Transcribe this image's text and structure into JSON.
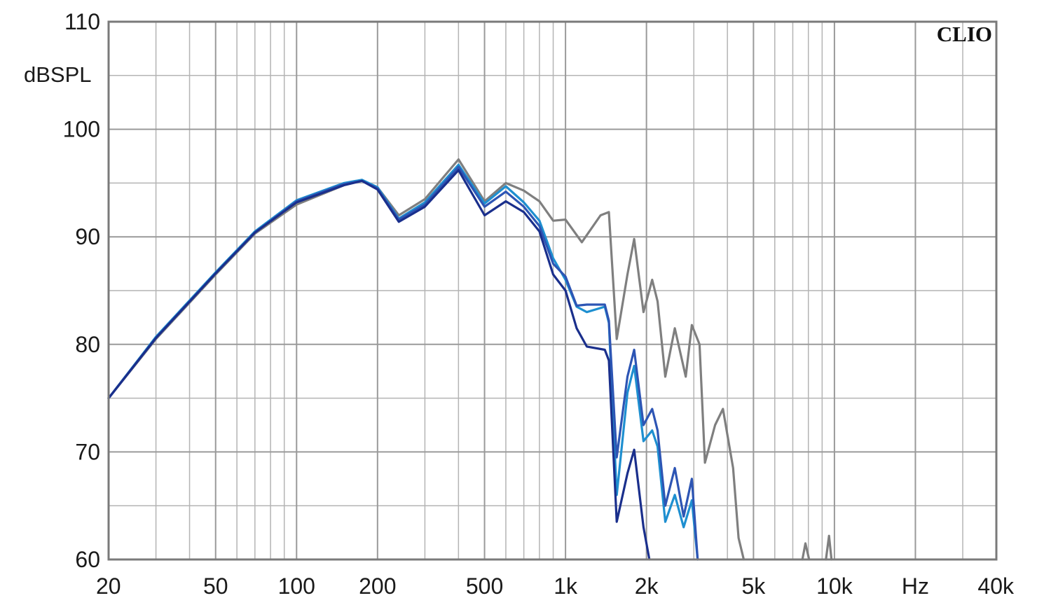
{
  "chart_data": {
    "type": "line",
    "brand": "CLIO",
    "ylabel": "dBSPL",
    "xunit_label": "Hz",
    "xscale": "log",
    "xlim": [
      20,
      40000
    ],
    "ylim": [
      60,
      110
    ],
    "grid": true,
    "x_ticks": [
      {
        "value": 20,
        "label": "20"
      },
      {
        "value": 50,
        "label": "50"
      },
      {
        "value": 100,
        "label": "100"
      },
      {
        "value": 200,
        "label": "200"
      },
      {
        "value": 500,
        "label": "500"
      },
      {
        "value": 1000,
        "label": "1k"
      },
      {
        "value": 2000,
        "label": "2k"
      },
      {
        "value": 5000,
        "label": "5k"
      },
      {
        "value": 10000,
        "label": "10k"
      },
      {
        "value": 20000,
        "label": "Hz"
      },
      {
        "value": 40000,
        "label": "40k"
      }
    ],
    "y_ticks": [
      {
        "value": 60,
        "label": "60"
      },
      {
        "value": 70,
        "label": "70"
      },
      {
        "value": 80,
        "label": "80"
      },
      {
        "value": 90,
        "label": "90"
      },
      {
        "value": 100,
        "label": "100"
      },
      {
        "value": 110,
        "label": "110"
      }
    ],
    "series": [
      {
        "color": "#7f7f7f",
        "points": [
          [
            20,
            75
          ],
          [
            30,
            80.5
          ],
          [
            50,
            86.5
          ],
          [
            70,
            90.3
          ],
          [
            100,
            93
          ],
          [
            150,
            94.8
          ],
          [
            175,
            95.2
          ],
          [
            200,
            94.6
          ],
          [
            240,
            92
          ],
          [
            300,
            93.5
          ],
          [
            400,
            97.2
          ],
          [
            500,
            93.3
          ],
          [
            600,
            95
          ],
          [
            700,
            94.3
          ],
          [
            800,
            93.3
          ],
          [
            900,
            91.5
          ],
          [
            1000,
            91.6
          ],
          [
            1150,
            89.5
          ],
          [
            1350,
            92
          ],
          [
            1450,
            92.3
          ],
          [
            1550,
            80.5
          ],
          [
            1700,
            86.5
          ],
          [
            1800,
            89.8
          ],
          [
            1950,
            83
          ],
          [
            2100,
            86
          ],
          [
            2200,
            84
          ],
          [
            2350,
            77
          ],
          [
            2550,
            81.5
          ],
          [
            2800,
            77
          ],
          [
            2950,
            81.8
          ],
          [
            3150,
            80
          ],
          [
            3300,
            69
          ],
          [
            3600,
            72.5
          ],
          [
            3850,
            74
          ],
          [
            4200,
            68.5
          ],
          [
            4400,
            62
          ],
          [
            4600,
            60
          ]
        ],
        "segments": [
          [
            [
              7600,
              60
            ],
            [
              7800,
              61.5
            ],
            [
              8050,
              60
            ]
          ],
          [
            [
              9300,
              60
            ],
            [
              9550,
              62.2
            ],
            [
              9750,
              60
            ]
          ]
        ]
      },
      {
        "color": "#1e8fd0",
        "points": [
          [
            20,
            75
          ],
          [
            30,
            80.7
          ],
          [
            50,
            86.7
          ],
          [
            70,
            90.5
          ],
          [
            100,
            93.4
          ],
          [
            150,
            95
          ],
          [
            175,
            95.3
          ],
          [
            200,
            94.6
          ],
          [
            240,
            91.7
          ],
          [
            300,
            93.2
          ],
          [
            400,
            96.7
          ],
          [
            500,
            93.1
          ],
          [
            600,
            94.7
          ],
          [
            700,
            93.2
          ],
          [
            800,
            91.5
          ],
          [
            900,
            88
          ],
          [
            1000,
            86
          ],
          [
            1100,
            83.5
          ],
          [
            1200,
            83
          ],
          [
            1400,
            83.5
          ],
          [
            1450,
            82
          ],
          [
            1550,
            66
          ],
          [
            1700,
            75.5
          ],
          [
            1800,
            78
          ],
          [
            1950,
            71
          ],
          [
            2100,
            72
          ],
          [
            2200,
            70.5
          ],
          [
            2350,
            63.5
          ],
          [
            2550,
            66
          ],
          [
            2750,
            63
          ],
          [
            2950,
            65.5
          ],
          [
            3100,
            60
          ]
        ],
        "segments": []
      },
      {
        "color": "#2d55b4",
        "points": [
          [
            20,
            75
          ],
          [
            30,
            80.6
          ],
          [
            50,
            86.6
          ],
          [
            70,
            90.4
          ],
          [
            100,
            93.3
          ],
          [
            150,
            94.9
          ],
          [
            175,
            95.2
          ],
          [
            200,
            94.5
          ],
          [
            240,
            91.6
          ],
          [
            300,
            93
          ],
          [
            400,
            96.5
          ],
          [
            500,
            92.8
          ],
          [
            600,
            94.2
          ],
          [
            700,
            92.8
          ],
          [
            800,
            91
          ],
          [
            900,
            87.5
          ],
          [
            1000,
            86.3
          ],
          [
            1100,
            83.6
          ],
          [
            1200,
            83.7
          ],
          [
            1400,
            83.7
          ],
          [
            1450,
            82.2
          ],
          [
            1550,
            69.5
          ],
          [
            1700,
            77
          ],
          [
            1800,
            79.5
          ],
          [
            1950,
            72.5
          ],
          [
            2100,
            74
          ],
          [
            2200,
            72
          ],
          [
            2350,
            65
          ],
          [
            2550,
            68.5
          ],
          [
            2750,
            64
          ],
          [
            2950,
            67.5
          ],
          [
            3100,
            60
          ]
        ],
        "segments": []
      },
      {
        "color": "#1a2f8c",
        "points": [
          [
            20,
            75
          ],
          [
            30,
            80.6
          ],
          [
            50,
            86.6
          ],
          [
            70,
            90.4
          ],
          [
            100,
            93.2
          ],
          [
            150,
            94.8
          ],
          [
            175,
            95.2
          ],
          [
            200,
            94.4
          ],
          [
            240,
            91.4
          ],
          [
            300,
            92.8
          ],
          [
            400,
            96.2
          ],
          [
            500,
            92
          ],
          [
            600,
            93.3
          ],
          [
            700,
            92.3
          ],
          [
            800,
            90.5
          ],
          [
            900,
            86.5
          ],
          [
            1000,
            85
          ],
          [
            1100,
            81.5
          ],
          [
            1200,
            79.8
          ],
          [
            1400,
            79.5
          ],
          [
            1450,
            78.5
          ],
          [
            1550,
            63.5
          ],
          [
            1700,
            68
          ],
          [
            1800,
            70.2
          ],
          [
            1950,
            63
          ],
          [
            2050,
            60
          ]
        ],
        "segments": []
      }
    ]
  }
}
